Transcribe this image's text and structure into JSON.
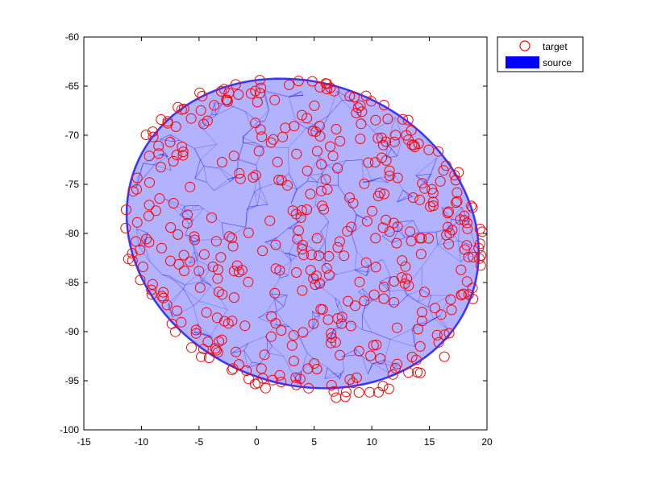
{
  "chart_data": {
    "type": "scatter",
    "title": "",
    "xlabel": "",
    "ylabel": "",
    "xlim": [
      -15,
      20
    ],
    "ylim": [
      -100,
      -60
    ],
    "xticks": [
      -15,
      -10,
      -5,
      0,
      5,
      10,
      15,
      20
    ],
    "yticks": [
      -100,
      -95,
      -90,
      -85,
      -80,
      -75,
      -70,
      -65,
      -60
    ],
    "grid": false,
    "legend_position": "top-right",
    "series": [
      {
        "name": "target",
        "marker": "circle-open",
        "color": "#ff0000",
        "distribution": {
          "center": [
            4,
            -80.3
          ],
          "radius_x": 15,
          "radius_y": 17.5,
          "rotation_deg": 38
        }
      },
      {
        "name": "source",
        "marker": "filled-mesh",
        "color": "#0000ff",
        "shape": {
          "center": [
            4,
            -80
          ],
          "radius_x": 14.5,
          "radius_y": 16.5,
          "rotation_deg": 38
        }
      }
    ]
  },
  "legend": {
    "items": [
      {
        "label": "target",
        "color": "#ff0000",
        "symbol": "circle"
      },
      {
        "label": "source",
        "color": "#0000ff",
        "symbol": "patch"
      }
    ]
  }
}
